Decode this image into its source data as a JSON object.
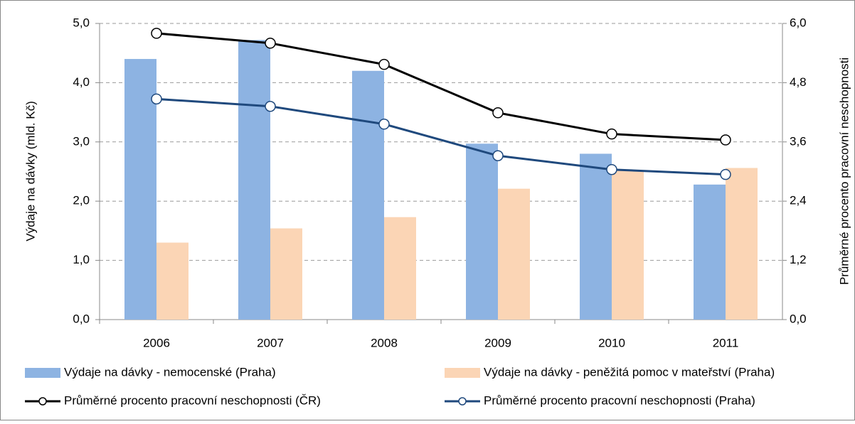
{
  "chart_data": {
    "type": "bar-line",
    "categories": [
      "2006",
      "2007",
      "2008",
      "2009",
      "2010",
      "2011"
    ],
    "ylabel": "Výdaje na dávky (mld. Kč)",
    "y2label": "Průměrné procento pracovní neschopnosti",
    "ylim": [
      0,
      5
    ],
    "yticks": [
      {
        "value": 0,
        "label": "0,0"
      },
      {
        "value": 1,
        "label": "1,0"
      },
      {
        "value": 2,
        "label": "2,0"
      },
      {
        "value": 3,
        "label": "3,0"
      },
      {
        "value": 4,
        "label": "4,0"
      },
      {
        "value": 5,
        "label": "5,0"
      }
    ],
    "y2lim": [
      0,
      6
    ],
    "y2ticks": [
      {
        "value": 0,
        "label": "0,0"
      },
      {
        "value": 1.2,
        "label": "1,2"
      },
      {
        "value": 2.4,
        "label": "2,4"
      },
      {
        "value": 3.6,
        "label": "3,6"
      },
      {
        "value": 4.8,
        "label": "4,8"
      },
      {
        "value": 6,
        "label": "6,0"
      }
    ],
    "grid": true,
    "series": [
      {
        "name": "Výdaje na dávky - nemocenské (Praha)",
        "type": "bar",
        "color": "#8db3e2",
        "values": [
          4.4,
          4.72,
          4.2,
          2.97,
          2.8,
          2.28
        ]
      },
      {
        "name": "Výdaje na dávky - peněžitá pomoc v mateřství (Praha)",
        "type": "bar",
        "color": "#fbd5b5",
        "values": [
          1.3,
          1.54,
          1.73,
          2.21,
          2.52,
          2.56
        ]
      },
      {
        "name": "Průměrné procento pracovní neschopnosti (ČR)",
        "type": "line",
        "axis": "y2",
        "color": "#000000",
        "values": [
          5.8,
          5.6,
          5.17,
          4.19,
          3.76,
          3.64
        ]
      },
      {
        "name": "Průměrné procento pracovní neschopnosti (Praha)",
        "type": "line",
        "axis": "y2",
        "color": "#1f497d",
        "values": [
          4.47,
          4.32,
          3.96,
          3.32,
          3.04,
          2.94
        ]
      }
    ]
  }
}
